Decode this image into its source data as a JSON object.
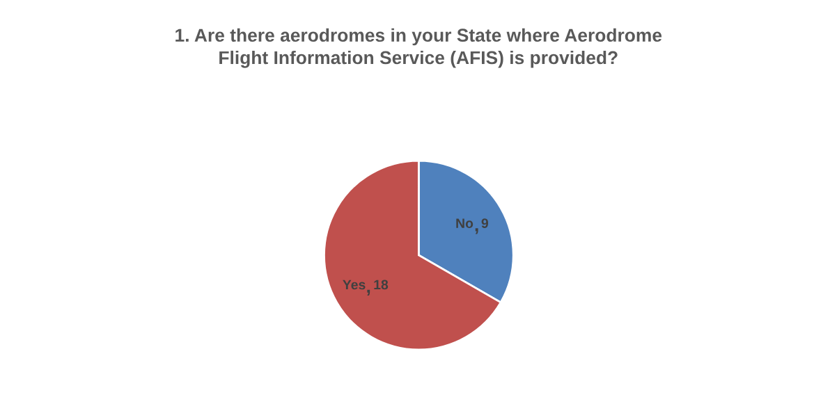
{
  "chart_data": {
    "type": "pie",
    "title": "1. Are there aerodromes in your State where Aerodrome\nFlight Information Service (AFIS) is provided?",
    "categories": [
      "No",
      "Yes"
    ],
    "values": [
      9,
      18
    ],
    "colors": [
      "#4f81bd",
      "#c0504d"
    ],
    "data_labels": true,
    "legend": false
  }
}
